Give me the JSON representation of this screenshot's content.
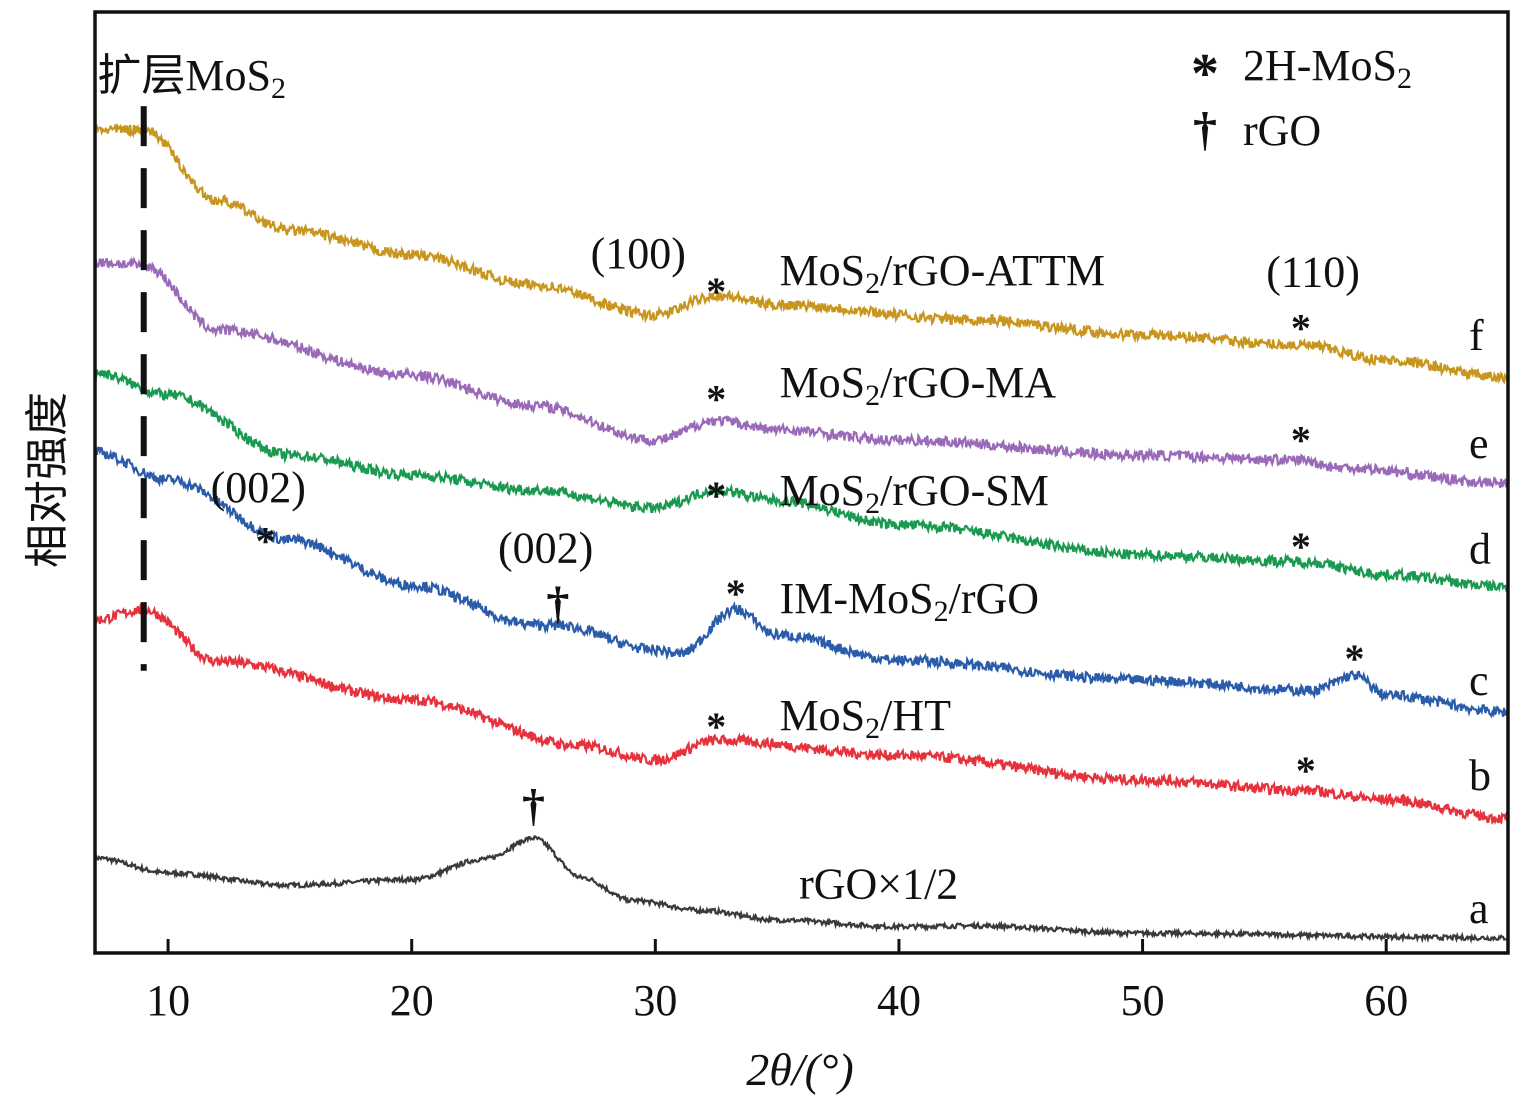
{
  "chart_data": {
    "type": "line",
    "title": "",
    "xlabel": "2θ/(°)",
    "ylabel": "相对强度",
    "xlim": [
      7,
      65
    ],
    "ylim": [
      0,
      100
    ],
    "xticks": [
      10,
      20,
      30,
      40,
      50,
      60
    ],
    "grid": false,
    "legend_position": "top-right",
    "legend": [
      {
        "symbol": "*",
        "label": "2H-MoS₂"
      },
      {
        "symbol": "†",
        "label": "rGO"
      }
    ],
    "dashed_line_x": 9,
    "dashed_line_label": "扩层MoS₂",
    "series": [
      {
        "name": "rGO×1/2",
        "letter": "a",
        "color": "#3a3a3a",
        "x": [
          7,
          10,
          15,
          20,
          23,
          25,
          27,
          29,
          32,
          35,
          40,
          43,
          50,
          65
        ],
        "y": [
          10.1,
          8.5,
          7.2,
          7.8,
          10,
          12.2,
          8,
          5.6,
          4.5,
          3.5,
          2.8,
          2.9,
          2.1,
          1.6
        ]
      },
      {
        "name": "MoS₂/HT",
        "letter": "b",
        "color": "#e5323c",
        "x": [
          7,
          9,
          12,
          20,
          27,
          30,
          32.5,
          40,
          50,
          56.5,
          60,
          65
        ],
        "y": [
          35.4,
          36.5,
          31,
          26.9,
          22,
          20.5,
          22.6,
          21,
          18.4,
          17.3,
          16.3,
          14.3
        ]
      },
      {
        "name": "IM-MoS₂/rGO",
        "letter": "c",
        "color": "#2a5caa",
        "x": [
          7,
          10,
          15,
          20,
          25,
          26,
          30,
          31,
          33.3,
          35,
          40,
          50,
          57,
          58.7,
          60,
          65
        ],
        "y": [
          53.2,
          50.3,
          43.9,
          39.1,
          34.9,
          34.8,
          32.2,
          31.8,
          36.5,
          33.8,
          31.1,
          29,
          27.9,
          29.5,
          27.4,
          25.6
        ]
      },
      {
        "name": "MoS₂/rGO-SM",
        "letter": "d",
        "color": "#1a9a50",
        "x": [
          7,
          10,
          15,
          20,
          25,
          30,
          32.5,
          35,
          40,
          50,
          56.5,
          60,
          65
        ],
        "y": [
          61.7,
          59.3,
          52.9,
          50.8,
          49.2,
          47.3,
          49.2,
          48.1,
          45.5,
          42.3,
          41.6,
          40.2,
          38.9
        ]
      },
      {
        "name": "MoS₂/rGO-MA",
        "letter": "e",
        "color": "#9a6ab8",
        "x": [
          7,
          9,
          12,
          20,
          25,
          30,
          32.5,
          35,
          40,
          50,
          56.5,
          58,
          65
        ],
        "y": [
          73.4,
          73.1,
          66.2,
          61.4,
          58.2,
          54.5,
          56.6,
          55.6,
          54.5,
          52.9,
          52.4,
          51.6,
          49.9
        ]
      },
      {
        "name": "MoS₂/rGO-ATTM",
        "letter": "f",
        "color": "#c8961e",
        "x": [
          7,
          9,
          12,
          15,
          20,
          25,
          30,
          32.5,
          35,
          43,
          50,
          56.5,
          60,
          65
        ],
        "y": [
          87.5,
          87.5,
          80,
          76.8,
          74.2,
          71,
          67.8,
          69.9,
          68.9,
          67.3,
          65.7,
          64.6,
          63,
          61.1
        ]
      }
    ],
    "annotations": [
      {
        "text": "(100)",
        "x": 29.3,
        "y": 72.5
      },
      {
        "text": "(110)",
        "x": 57,
        "y": 70.5
      },
      {
        "text": "(002)",
        "x": 13.7,
        "y": 47.6
      },
      {
        "text": "(002)",
        "x": 25.5,
        "y": 41.2
      }
    ],
    "markers": [
      {
        "symbol": "*",
        "x": 32.5,
        "y": 71.2
      },
      {
        "symbol": "*",
        "x": 56.5,
        "y": 67.3
      },
      {
        "symbol": "*",
        "x": 32.5,
        "y": 59.8
      },
      {
        "symbol": "*",
        "x": 56.5,
        "y": 55.4
      },
      {
        "symbol": "*",
        "x": 32.5,
        "y": 49.5
      },
      {
        "symbol": "*",
        "x": 56.5,
        "y": 44.1
      },
      {
        "symbol": "*",
        "x": 14,
        "y": 44.7
      },
      {
        "symbol": "*",
        "x": 33.3,
        "y": 39.1
      },
      {
        "symbol": "*",
        "x": 58.7,
        "y": 32.2
      },
      {
        "symbol": "*",
        "x": 32.5,
        "y": 25
      },
      {
        "symbol": "*",
        "x": 56.7,
        "y": 20.3
      },
      {
        "symbol": "†",
        "x": 26,
        "y": 37.2
      },
      {
        "symbol": "†",
        "x": 25,
        "y": 15.7
      }
    ]
  }
}
